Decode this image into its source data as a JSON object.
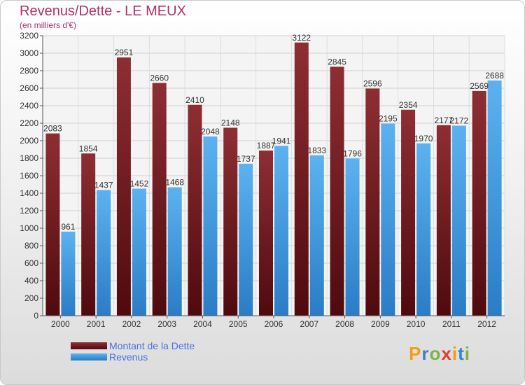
{
  "header": {
    "title": "Revenus/Dette - LE MEUX",
    "subtitle": "(en milliers d'€)"
  },
  "logo": {
    "text": "Proxiti",
    "letters": [
      {
        "ch": "P",
        "color": "#f39c12"
      },
      {
        "ch": "r",
        "color": "#3a7fd5"
      },
      {
        "ch": "o",
        "color": "#7cb342"
      },
      {
        "ch": "x",
        "color": "#e53935"
      },
      {
        "ch": "i",
        "color": "#f39c12"
      },
      {
        "ch": "t",
        "color": "#3a7fd5"
      },
      {
        "ch": "i",
        "color": "#7cb342"
      }
    ]
  },
  "chart_data": {
    "type": "bar",
    "title": "Revenus/Dette - LE MEUX",
    "subtitle": "(en milliers d'€)",
    "categories": [
      "2000",
      "2001",
      "2002",
      "2003",
      "2004",
      "2005",
      "2006",
      "2007",
      "2008",
      "2009",
      "2010",
      "2011",
      "2012"
    ],
    "series": [
      {
        "name": "Montant de la Dette",
        "color": "#7a1e22",
        "values": [
          2083,
          1854,
          2951,
          2660,
          2410,
          2148,
          1887,
          3122,
          2845,
          2596,
          2354,
          2177,
          2569
        ]
      },
      {
        "name": "Revenus",
        "color": "#4aa3e8",
        "values": [
          961,
          1437,
          1452,
          1468,
          2048,
          1737,
          1941,
          1833,
          1796,
          2195,
          1970,
          2172,
          2688
        ]
      }
    ],
    "ylim": [
      0,
      3200
    ],
    "yticks": [
      0,
      200,
      400,
      600,
      800,
      1000,
      1200,
      1400,
      1600,
      1800,
      2000,
      2200,
      2400,
      2600,
      2800,
      3000,
      3200
    ],
    "xlabel": "",
    "ylabel": "",
    "grid": true,
    "legend": "bottom-left"
  }
}
